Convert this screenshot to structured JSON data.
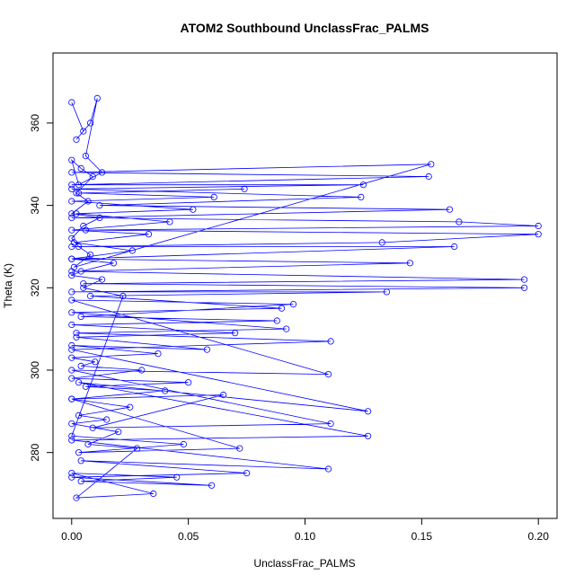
{
  "chart_data": {
    "type": "line",
    "title": "ATOM2 Southbound UnclassFrac_PALMS",
    "xlabel": "UnclassFrac_PALMS",
    "ylabel": "Theta (K)",
    "xlim": [
      -0.008,
      0.208
    ],
    "ylim": [
      264,
      377
    ],
    "xticks": [
      0.0,
      0.05,
      0.1,
      0.15,
      0.2
    ],
    "xtick_labels": [
      "0.00",
      "0.05",
      "0.10",
      "0.15",
      "0.20"
    ],
    "yticks": [
      280,
      300,
      320,
      340,
      360
    ],
    "ytick_labels": [
      "280",
      "300",
      "320",
      "340",
      "360"
    ],
    "grid": false,
    "legend": "none",
    "series_color": "#0000ff",
    "series": [
      {
        "marker": "open-circle",
        "x": [
          0.0,
          0.005,
          0.002,
          0.008,
          0.011,
          0.006,
          0.013,
          0.003,
          0.0,
          0.004,
          0.009,
          0.002,
          0.007,
          0.0,
          0.012,
          0.005,
          0.0,
          0.003,
          0.008,
          0.001,
          0.154,
          0.0,
          0.153,
          0.0,
          0.125,
          0.0,
          0.124,
          0.012,
          0.162,
          0.0,
          0.166,
          0.2,
          0.006,
          0.2,
          0.133,
          0.0,
          0.164,
          0.0,
          0.145,
          0.0,
          0.194,
          0.005,
          0.194,
          0.0,
          0.135,
          0.008,
          0.09,
          0.0,
          0.092,
          0.002,
          0.111,
          0.0,
          0.127,
          0.003,
          0.127,
          0.0,
          0.11,
          0.004,
          0.075,
          0.0,
          0.06,
          0.004,
          0.045,
          0.0,
          0.035,
          0.002,
          0.028,
          0.007,
          0.02,
          0.0,
          0.015,
          0.003,
          0.025,
          0.0,
          0.04,
          0.006,
          0.05,
          0.0,
          0.03,
          0.004,
          0.01,
          0.0,
          0.037,
          0.0,
          0.058,
          0.002,
          0.07,
          0.0,
          0.088,
          0.004,
          0.095,
          0.0,
          0.11,
          0.0,
          0.111,
          0.009,
          0.065,
          0.0,
          0.072,
          0.003,
          0.048,
          0.0,
          0.022,
          0.005,
          0.013,
          0.0,
          0.004,
          0.018,
          0.0,
          0.026,
          0.001,
          0.033,
          0.0,
          0.042,
          0.002,
          0.052,
          0.0,
          0.061,
          0.003,
          0.074
        ],
        "y": [
          365,
          358,
          356,
          360,
          366,
          352,
          348,
          345,
          351,
          349,
          347,
          343,
          341,
          338,
          337,
          335,
          332,
          330,
          328,
          325,
          350,
          348,
          347,
          345,
          345,
          344,
          342,
          340,
          339,
          337,
          336,
          335,
          334,
          333,
          331,
          330,
          330,
          327,
          326,
          324,
          322,
          321,
          320,
          319,
          319,
          318,
          315,
          314,
          310,
          309,
          307,
          305,
          290,
          297,
          284,
          283,
          276,
          278,
          275,
          274,
          272,
          273,
          274,
          275,
          270,
          269,
          281,
          282,
          285,
          287,
          288,
          289,
          291,
          293,
          295,
          296,
          297,
          298,
          300,
          301,
          302,
          303,
          304,
          306,
          305,
          308,
          309,
          311,
          312,
          313,
          316,
          317,
          299,
          300,
          287,
          286,
          294,
          293,
          281,
          280,
          282,
          284,
          318,
          320,
          322,
          323,
          324,
          326,
          327,
          329,
          331,
          333,
          334,
          336,
          338,
          339,
          341,
          342,
          343,
          344
        ]
      }
    ]
  }
}
